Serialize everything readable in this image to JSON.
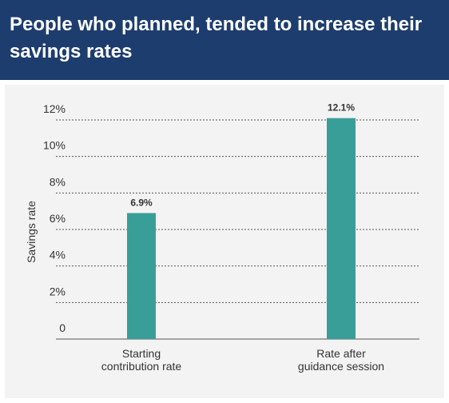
{
  "chart_data": {
    "type": "bar",
    "title": "People who planned, tended to increase their savings rates",
    "y_label": "Savings rate",
    "categories": [
      "Starting contribution rate",
      "Rate after guidance session"
    ],
    "values": [
      6.9,
      12.1
    ],
    "value_labels": [
      "6.9%",
      "12.1%"
    ],
    "color": "#3a9e98",
    "ylim": [
      0,
      12
    ],
    "yticks": [
      0,
      {
        "value": 2,
        "label": "2%"
      },
      {
        "value": 4,
        "label": "4%"
      },
      {
        "value": 6,
        "label": "6%"
      },
      {
        "value": 8,
        "label": "8%"
      },
      {
        "value": 10,
        "label": "10%"
      },
      {
        "value": 12,
        "label": "12%"
      }
    ],
    "grid": true
  }
}
